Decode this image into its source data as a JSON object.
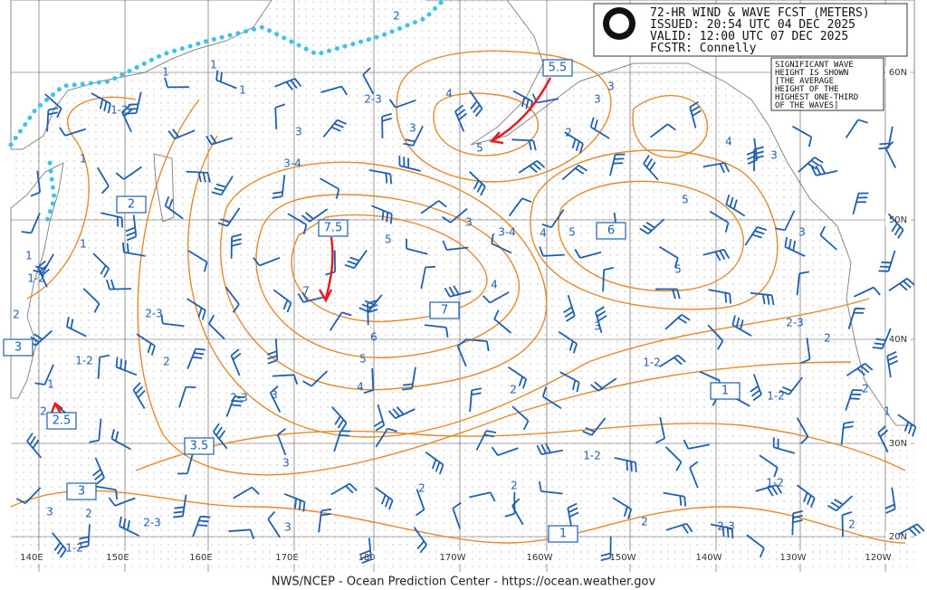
{
  "header": {
    "lines": [
      "72-HR WIND & WAVE FCST (METERS)",
      "ISSUED: 20:54 UTC 04 DEC 2025",
      "VALID:  12:00 UTC 07 DEC 2025",
      "FCSTR:  Connelly"
    ]
  },
  "note": {
    "lines": [
      "SIGNIFICANT WAVE",
      "HEIGHT IS SHOWN",
      "[THE AVERAGE",
      "HEIGHT OF THE",
      "HIGHEST ONE-THIRD",
      "OF THE WAVES]"
    ]
  },
  "lon_labels": [
    "140E",
    "150E",
    "160E",
    "170E",
    "180",
    "170W",
    "160W",
    "150W",
    "140W",
    "130W",
    "120W"
  ],
  "lat_labels": [
    "60N",
    "50N",
    "40N",
    "30N",
    "20N"
  ],
  "boxed_labels": [
    "5.5",
    "7.5",
    "6",
    "7",
    "2",
    "3",
    "2.5",
    "3.5",
    "3",
    "1",
    "1"
  ],
  "contour_labels": [
    "1",
    "1-2",
    "1",
    "1",
    "1",
    "1-2",
    "2",
    "1",
    "1",
    "2",
    "2-3",
    "3",
    "3-4",
    "3",
    "4",
    "5",
    "3",
    "2",
    "3",
    "4",
    "3",
    "5",
    "3",
    "3-4",
    "4",
    "5",
    "5",
    "4",
    "5",
    "3",
    "2-3",
    "2",
    "6",
    "5",
    "4",
    "2-3",
    "2",
    "1-2",
    "1",
    "2",
    "3",
    "2-3",
    "2",
    "1-2",
    "1-2",
    "2",
    "1",
    "3",
    "2",
    "2",
    "1-2",
    "1-2",
    "3",
    "2",
    "2-3",
    "3",
    "2",
    "2-3",
    "2",
    "1-2",
    "1",
    "3",
    "7"
  ],
  "footer": "NWS/NCEP - Ocean Prediction Center - https://ocean.weather.gov"
}
